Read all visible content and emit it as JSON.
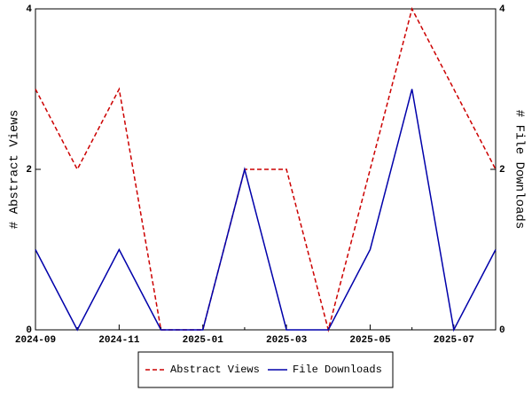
{
  "chart_data": {
    "type": "line",
    "categories": [
      "2024-09",
      null,
      "2024-11",
      null,
      "2025-01",
      null,
      "2025-03",
      null,
      "2025-05",
      null,
      "2025-07",
      null
    ],
    "series": [
      {
        "name": "Abstract Views",
        "color": "#cc0000",
        "dash": true,
        "values": [
          3,
          2,
          3,
          0,
          0,
          2,
          2,
          0,
          2,
          4,
          3,
          2
        ]
      },
      {
        "name": "File Downloads",
        "color": "#0000aa",
        "axis": "y2",
        "values": [
          1,
          0,
          1,
          0,
          0,
          2,
          0,
          0,
          1,
          3,
          0,
          1
        ]
      }
    ],
    "ylabel": "# Abstract Views",
    "y2label": "# File Downloads",
    "ylim": [
      0,
      4
    ],
    "yticks": [
      0,
      2,
      4
    ],
    "y2lim": [
      0,
      4
    ],
    "y2ticks": [
      0,
      2,
      4
    ],
    "legend": "bottom"
  }
}
